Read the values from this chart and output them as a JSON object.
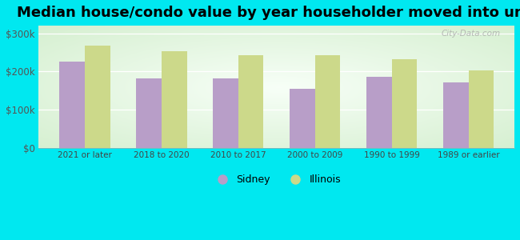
{
  "title": "Median house/condo value by year householder moved into unit",
  "categories": [
    "2021 or later",
    "2018 to 2020",
    "2010 to 2017",
    "2000 to 2009",
    "1990 to 1999",
    "1989 or earlier"
  ],
  "sidney_values": [
    225000,
    182000,
    181000,
    155000,
    185000,
    172000
  ],
  "illinois_values": [
    268000,
    252000,
    242000,
    243000,
    232000,
    202000
  ],
  "sidney_color": "#b89ec8",
  "illinois_color": "#ccd98a",
  "background_outer": "#00e8f0",
  "background_inner_center": "#f8fff8",
  "background_inner_edge": "#d8f0d0",
  "ylim": [
    0,
    320000
  ],
  "yticks": [
    0,
    100000,
    200000,
    300000
  ],
  "ytick_labels": [
    "$0",
    "$100k",
    "$200k",
    "$300k"
  ],
  "legend_labels": [
    "Sidney",
    "Illinois"
  ],
  "title_fontsize": 13,
  "watermark": "City-Data.com"
}
